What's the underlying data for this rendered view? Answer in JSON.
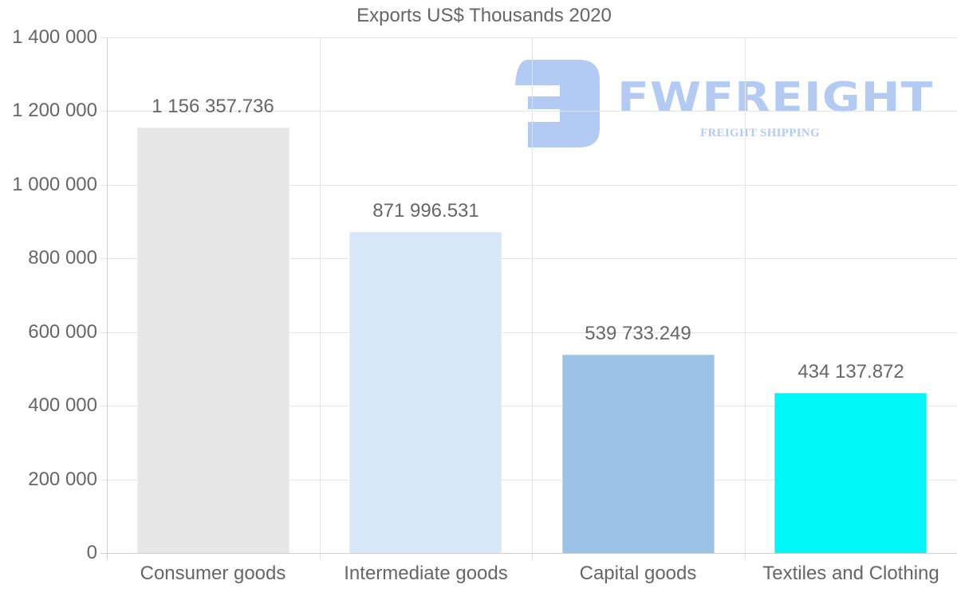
{
  "chart_data": {
    "type": "bar",
    "title": "Exports US$ Thousands 2020",
    "xlabel": "",
    "ylabel": "",
    "categories": [
      "Consumer goods",
      "Intermediate goods",
      "Capital goods",
      "Textiles and Clothing"
    ],
    "values": [
      1156357.736,
      871996.531,
      539733.249,
      434137.872
    ],
    "value_labels": [
      "1 156 357.736",
      "871 996.531",
      "539 733.249",
      "434 137.872"
    ],
    "colors": [
      "#e7e7e7",
      "#d6e7f8",
      "#9bc3e6",
      "#00f7f7"
    ],
    "ylim": [
      0,
      1400000
    ],
    "yticks": [
      0,
      200000,
      400000,
      600000,
      800000,
      1000000,
      1200000,
      1400000
    ],
    "ytick_labels": [
      "0",
      "200 000",
      "400 000",
      "600 000",
      "800 000",
      "1 000 000",
      "1 200 000",
      "1 400 000"
    ],
    "grid": true,
    "legend": "none"
  },
  "watermark": {
    "brand": "FWFREIGHT",
    "tagline": "FREIGHT SHIPPING",
    "color": "#74a0e8"
  }
}
